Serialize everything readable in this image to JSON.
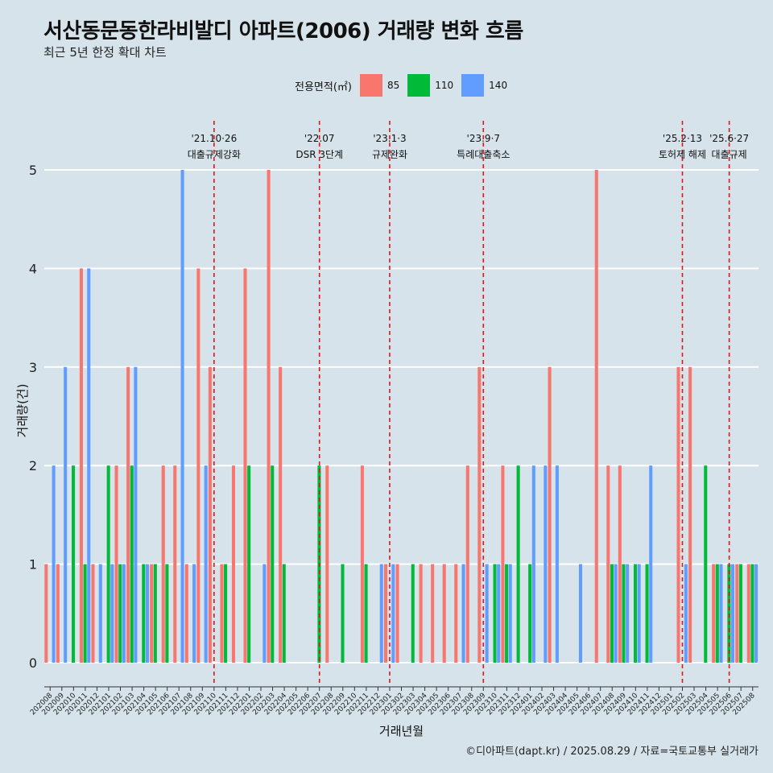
{
  "title": "서산동문동한라비발디 아파트(2006) 거래량 변화 흐름",
  "subtitle": "최근 5년 한정 확대 차트",
  "caption": "©디아파트(dapt.kr) / 2025.08.29 / 자료=국토교통부 실거래가",
  "legend": {
    "title": "전용면적(㎡)",
    "items": [
      {
        "label": "85",
        "color": "#f8766d"
      },
      {
        "label": "110",
        "color": "#00ba38"
      },
      {
        "label": "140",
        "color": "#619cff"
      }
    ]
  },
  "chart_data": {
    "type": "bar",
    "xlabel": "거래년월",
    "ylabel": "거래량(건)",
    "ylim": [
      0,
      5
    ],
    "yticks": [
      0,
      1,
      2,
      3,
      4,
      5
    ],
    "grid": true,
    "legend_position": "top",
    "categories": [
      "202008",
      "202009",
      "202010",
      "202011",
      "202012",
      "202101",
      "202102",
      "202103",
      "202104",
      "202105",
      "202106",
      "202107",
      "202108",
      "202109",
      "202110",
      "202111",
      "202112",
      "202201",
      "202202",
      "202203",
      "202204",
      "202205",
      "202206",
      "202207",
      "202208",
      "202209",
      "202210",
      "202211",
      "202212",
      "202301",
      "202302",
      "202303",
      "202304",
      "202305",
      "202306",
      "202307",
      "202308",
      "202309",
      "202310",
      "202311",
      "202312",
      "202401",
      "202402",
      "202403",
      "202404",
      "202405",
      "202406",
      "202407",
      "202408",
      "202409",
      "202410",
      "202411",
      "202412",
      "202501",
      "202502",
      "202503",
      "202504",
      "202505",
      "202506",
      "202507",
      "202508"
    ],
    "series": [
      {
        "name": "85",
        "values": [
          1,
          1,
          0,
          4,
          1,
          0,
          2,
          3,
          0,
          1,
          2,
          2,
          1,
          4,
          3,
          1,
          2,
          4,
          0,
          5,
          3,
          0,
          0,
          0,
          2,
          0,
          0,
          2,
          0,
          1,
          1,
          0,
          1,
          1,
          1,
          1,
          2,
          3,
          0,
          2,
          0,
          0,
          0,
          3,
          0,
          0,
          0,
          5,
          2,
          2,
          0,
          0,
          0,
          0,
          3,
          3,
          0,
          1,
          0,
          1,
          1
        ]
      },
      {
        "name": "110",
        "values": [
          0,
          0,
          2,
          1,
          0,
          2,
          1,
          2,
          1,
          1,
          1,
          0,
          0,
          0,
          0,
          1,
          0,
          2,
          0,
          2,
          1,
          0,
          0,
          2,
          0,
          1,
          0,
          1,
          0,
          0,
          0,
          1,
          0,
          0,
          0,
          0,
          0,
          0,
          1,
          1,
          2,
          1,
          0,
          0,
          0,
          0,
          0,
          0,
          1,
          1,
          1,
          1,
          0,
          0,
          0,
          0,
          2,
          1,
          1,
          1,
          1
        ]
      },
      {
        "name": "140",
        "values": [
          2,
          3,
          0,
          4,
          1,
          1,
          1,
          3,
          1,
          0,
          0,
          5,
          1,
          2,
          0,
          0,
          0,
          0,
          1,
          0,
          0,
          0,
          0,
          0,
          0,
          0,
          0,
          0,
          1,
          1,
          0,
          0,
          0,
          0,
          0,
          1,
          0,
          1,
          1,
          1,
          0,
          2,
          2,
          2,
          0,
          1,
          0,
          0,
          1,
          1,
          1,
          2,
          0,
          0,
          1,
          0,
          0,
          1,
          1,
          0,
          1
        ]
      }
    ],
    "annotations": [
      {
        "x": "202110",
        "date": "'21.10·26",
        "label": "대출규제강화"
      },
      {
        "x": "202207",
        "date": "'22.07",
        "label": "DSR 3단계"
      },
      {
        "x": "202301",
        "date": "'23.1·3",
        "label": "규제완화"
      },
      {
        "x": "202309",
        "date": "'23.9·7",
        "label": "특례대출축소"
      },
      {
        "x": "202502",
        "date": "'25.2·13",
        "label": "토허제 해제"
      },
      {
        "x": "202506",
        "date": "'25.6·27",
        "label": "대출규제"
      }
    ]
  }
}
